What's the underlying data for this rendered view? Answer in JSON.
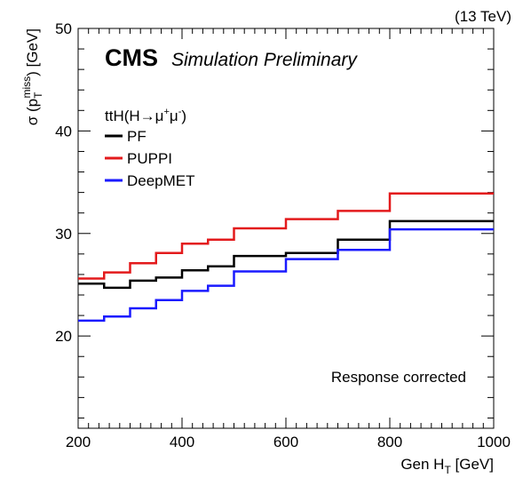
{
  "header": {
    "energy_label": "(13 TeV)",
    "experiment": "CMS",
    "status": "Simulation Preliminary"
  },
  "annotation": "Response corrected",
  "legend": {
    "title_prefix": "ttH(H",
    "title_arrow": "→",
    "title_mu1": "μ",
    "title_plus": "+",
    "title_mu2": "μ",
    "title_minus": "-",
    "title_close": ")"
  },
  "axes": {
    "x_main": "Gen H",
    "x_sub": "T",
    "x_unit": " [GeV]",
    "y_sigma": "σ (p",
    "y_sub": "T",
    "y_sup": "miss",
    "y_unit": ") [GeV]"
  },
  "chart_data": {
    "type": "line",
    "style": "step-histogram",
    "xlim": [
      200,
      1000
    ],
    "ylim": [
      11,
      50
    ],
    "x_ticks": [
      200,
      400,
      600,
      800,
      1000
    ],
    "y_ticks": [
      20,
      30,
      40,
      50
    ],
    "grid": false,
    "legend_position": "top-left",
    "bin_edges": [
      200,
      250,
      300,
      350,
      400,
      450,
      500,
      600,
      700,
      800,
      1000
    ],
    "series": [
      {
        "name": "PF",
        "color": "#000000",
        "values": [
          25.1,
          24.7,
          25.4,
          25.7,
          26.4,
          26.8,
          27.8,
          28.1,
          29.4,
          31.2
        ]
      },
      {
        "name": "PUPPI",
        "color": "#e31a1c",
        "values": [
          25.6,
          26.2,
          27.1,
          28.1,
          29.0,
          29.4,
          30.5,
          31.4,
          32.2,
          33.9
        ]
      },
      {
        "name": "DeepMET",
        "color": "#1a1aff",
        "values": [
          21.5,
          21.9,
          22.7,
          23.5,
          24.4,
          24.9,
          26.3,
          27.5,
          28.4,
          30.4
        ]
      }
    ]
  }
}
